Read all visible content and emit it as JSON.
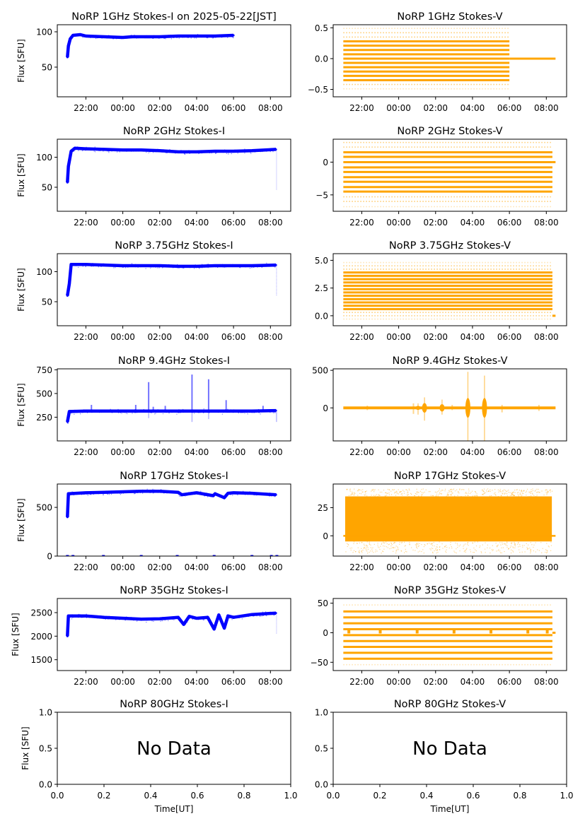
{
  "figure": {
    "xlabel_bottom": "Time[UT]",
    "ylabel": "Flux [SFU]",
    "no_data_label": "No Data",
    "colors": {
      "stokes_i": "#0000ff",
      "stokes_v": "#ffa500",
      "axes": "#000000"
    }
  },
  "chart_data": [
    {
      "id": "i1",
      "type": "scatter",
      "title": "NoRP 1GHz Stokes-I on 2025-05-22[JST]",
      "ylabel": "Flux [SFU]",
      "ylim": [
        8,
        110
      ],
      "yticks": [
        50,
        100
      ],
      "ytick_labels": [
        "50",
        "100"
      ],
      "xticks": [
        "22:00",
        "00:00",
        "02:00",
        "04:00",
        "06:00",
        "08:00"
      ],
      "xlim_hours": [
        -3.55,
        9.1
      ],
      "color": "#0000ff",
      "series": [
        {
          "name": "Stokes-I",
          "points": [
            [
              -3.0,
              64
            ],
            [
              -2.95,
              80
            ],
            [
              -2.85,
              90
            ],
            [
              -2.7,
              95
            ],
            [
              -2.3,
              96
            ],
            [
              -2,
              94
            ],
            [
              -1,
              93
            ],
            [
              0,
              92
            ],
            [
              0.5,
              93
            ],
            [
              1,
              93
            ],
            [
              2,
              93
            ],
            [
              3,
              94
            ],
            [
              4,
              94
            ],
            [
              5,
              94
            ],
            [
              6,
              95
            ]
          ]
        }
      ],
      "data_end_hours": 6.0
    },
    {
      "id": "v1",
      "type": "scatter",
      "title": "NoRP 1GHz Stokes-V",
      "ylim": [
        -0.62,
        0.55
      ],
      "yticks": [
        -0.5,
        0.0,
        0.5
      ],
      "ytick_labels": [
        "−0.5",
        "0.0",
        "0.5"
      ],
      "xticks": [
        "22:00",
        "00:00",
        "02:00",
        "04:00",
        "06:00",
        "08:00"
      ],
      "xlim_hours": [
        -3.55,
        9.1
      ],
      "color": "#ffa500",
      "levels": [
        -0.49,
        -0.42,
        -0.35,
        -0.28,
        -0.21,
        -0.14,
        -0.07,
        0.0,
        0.07,
        0.14,
        0.21,
        0.28,
        0.35,
        0.42,
        0.49
      ],
      "strong_levels": [
        -0.35,
        -0.28,
        -0.21,
        -0.14,
        -0.07,
        0.0,
        0.07,
        0.14,
        0.21,
        0.28
      ],
      "data_range_hours": [
        -3.0,
        6.0
      ],
      "zero_line_end_hours": 8.5
    },
    {
      "id": "i2",
      "type": "scatter",
      "title": "NoRP 2GHz Stokes-I",
      "ylabel": "Flux [SFU]",
      "ylim": [
        10,
        130
      ],
      "yticks": [
        50,
        100
      ],
      "ytick_labels": [
        "50",
        "100"
      ],
      "xticks": [
        "22:00",
        "00:00",
        "02:00",
        "04:00",
        "06:00",
        "08:00"
      ],
      "xlim_hours": [
        -3.55,
        9.1
      ],
      "color": "#0000ff",
      "series": [
        {
          "name": "Stokes-I",
          "points": [
            [
              -3.0,
              58
            ],
            [
              -2.95,
              85
            ],
            [
              -2.8,
              110
            ],
            [
              -2.6,
              115
            ],
            [
              -2,
              114
            ],
            [
              -1,
              113
            ],
            [
              0,
              112
            ],
            [
              1,
              112
            ],
            [
              2,
              111
            ],
            [
              3,
              109
            ],
            [
              4,
              109
            ],
            [
              5,
              110
            ],
            [
              6,
              110
            ],
            [
              7,
              111
            ],
            [
              8.3,
              113
            ]
          ]
        }
      ],
      "outliers": [
        [
          8.33,
          45
        ]
      ]
    },
    {
      "id": "v2",
      "type": "scatter",
      "title": "NoRP 2GHz Stokes-V",
      "ylim": [
        -7.5,
        3.5
      ],
      "yticks": [
        -5,
        0
      ],
      "ytick_labels": [
        "−5",
        "0"
      ],
      "xticks": [
        "22:00",
        "00:00",
        "02:00",
        "04:00",
        "06:00",
        "08:00"
      ],
      "xlim_hours": [
        -3.55,
        9.1
      ],
      "color": "#ffa500",
      "levels": [
        -6.8,
        -6.0,
        -5.3,
        -4.5,
        -3.8,
        -3.0,
        -2.3,
        -1.5,
        -0.8,
        0.0,
        0.8,
        1.5,
        2.3,
        3.0
      ],
      "strong_levels": [
        -4.5,
        -3.8,
        -3.0,
        -2.3,
        -1.5,
        -0.8,
        0.0,
        0.8,
        1.5
      ],
      "data_range_hours": [
        -3.0,
        8.33
      ],
      "zero_line_end_hours": 8.5
    },
    {
      "id": "i3",
      "type": "scatter",
      "title": "NoRP 3.75GHz Stokes-I",
      "ylabel": "Flux [SFU]",
      "ylim": [
        10,
        130
      ],
      "yticks": [
        50,
        100
      ],
      "ytick_labels": [
        "50",
        "100"
      ],
      "xticks": [
        "22:00",
        "00:00",
        "02:00",
        "04:00",
        "06:00",
        "08:00"
      ],
      "xlim_hours": [
        -3.55,
        9.1
      ],
      "color": "#0000ff",
      "series": [
        {
          "name": "Stokes-I",
          "points": [
            [
              -3.0,
              60
            ],
            [
              -2.9,
              80
            ],
            [
              -2.8,
              112
            ],
            [
              -2,
              112
            ],
            [
              -1,
              111
            ],
            [
              0,
              110
            ],
            [
              1,
              110
            ],
            [
              2,
              110
            ],
            [
              3,
              109
            ],
            [
              4,
              109
            ],
            [
              5,
              110
            ],
            [
              6,
              110
            ],
            [
              7,
              110
            ],
            [
              8.3,
              111
            ]
          ]
        }
      ],
      "outliers": [
        [
          8.33,
          60
        ]
      ]
    },
    {
      "id": "v3",
      "type": "scatter",
      "title": "NoRP 3.75GHz Stokes-V",
      "ylim": [
        -0.9,
        5.6
      ],
      "yticks": [
        0.0,
        2.5,
        5.0
      ],
      "ytick_labels": [
        "0.0",
        "2.5",
        "5.0"
      ],
      "xticks": [
        "22:00",
        "00:00",
        "02:00",
        "04:00",
        "06:00",
        "08:00"
      ],
      "xlim_hours": [
        -3.55,
        9.1
      ],
      "color": "#ffa500",
      "levels": [
        -0.3,
        0.0,
        0.3,
        0.6,
        0.9,
        1.2,
        1.5,
        1.8,
        2.1,
        2.4,
        2.7,
        3.0,
        3.3,
        3.6,
        3.9,
        4.2,
        4.5,
        4.8
      ],
      "strong_levels": [
        0.6,
        0.9,
        1.2,
        1.5,
        1.8,
        2.1,
        2.4,
        2.7,
        3.0,
        3.3,
        3.6,
        3.9
      ],
      "data_range_hours": [
        -3.0,
        8.33
      ],
      "zero_line_end_hours": 8.5
    },
    {
      "id": "i4",
      "type": "scatter",
      "title": "NoRP 9.4GHz Stokes-I",
      "ylabel": "Flux [SFU]",
      "ylim": [
        0,
        760
      ],
      "yticks": [
        250,
        500,
        750
      ],
      "ytick_labels": [
        "250",
        "500",
        "750"
      ],
      "xticks": [
        "22:00",
        "00:00",
        "02:00",
        "04:00",
        "06:00",
        "08:00"
      ],
      "xlim_hours": [
        -3.55,
        9.1
      ],
      "color": "#0000ff",
      "series": [
        {
          "name": "Stokes-I",
          "points": [
            [
              -3.0,
              200
            ],
            [
              -2.9,
              310
            ],
            [
              -2,
              315
            ],
            [
              -1,
              315
            ],
            [
              0,
              315
            ],
            [
              1,
              315
            ],
            [
              2,
              315
            ],
            [
              3,
              315
            ],
            [
              4,
              315
            ],
            [
              5,
              315
            ],
            [
              6,
              315
            ],
            [
              7,
              315
            ],
            [
              8.3,
              320
            ]
          ]
        }
      ],
      "spikes": [
        [
          -1.7,
          380
        ],
        [
          0.7,
          380
        ],
        [
          1.4,
          620
        ],
        [
          1.65,
          360
        ],
        [
          2.3,
          370
        ],
        [
          3.75,
          700
        ],
        [
          4.65,
          650
        ],
        [
          5.6,
          430
        ],
        [
          7.6,
          370
        ]
      ],
      "dips": [
        [
          1.4,
          240
        ],
        [
          3.75,
          200
        ],
        [
          4.65,
          230
        ],
        [
          8.33,
          200
        ]
      ]
    },
    {
      "id": "v4",
      "type": "scatter",
      "title": "NoRP 9.4GHz Stokes-V",
      "ylim": [
        -440,
        520
      ],
      "yticks": [
        0,
        500
      ],
      "ytick_labels": [
        "0",
        "500"
      ],
      "xticks": [
        "22:00",
        "00:00",
        "02:00",
        "04:00",
        "06:00",
        "08:00"
      ],
      "xlim_hours": [
        -3.55,
        9.1
      ],
      "color": "#ffa500",
      "data_range_hours": [
        -3.0,
        8.5
      ],
      "bursts": [
        [
          1.05,
          60,
          -90
        ],
        [
          1.4,
          140,
          -170
        ],
        [
          2.35,
          110,
          -90
        ],
        [
          3.75,
          480,
          -440
        ],
        [
          4.65,
          430,
          -440
        ]
      ],
      "small_bursts": [
        [
          -1.7,
          30,
          -30
        ],
        [
          0.8,
          60,
          -80
        ],
        [
          2.9,
          40,
          -30
        ],
        [
          5.6,
          40,
          -60
        ],
        [
          7.6,
          40,
          -40
        ]
      ]
    },
    {
      "id": "i5",
      "type": "scatter",
      "title": "NoRP 17GHz Stokes-I",
      "ylabel": "Flux [SFU]",
      "ylim": [
        0,
        740
      ],
      "yticks": [
        0,
        500
      ],
      "ytick_labels": [
        "0",
        "500"
      ],
      "xticks": [
        "22:00",
        "00:00",
        "02:00",
        "04:00",
        "06:00",
        "08:00"
      ],
      "xlim_hours": [
        -3.55,
        9.1
      ],
      "color": "#0000ff",
      "series": [
        {
          "name": "Stokes-I",
          "points": [
            [
              -3.0,
              400
            ],
            [
              -2.95,
              640
            ],
            [
              -2,
              650
            ],
            [
              -1,
              655
            ],
            [
              0,
              660
            ],
            [
              1,
              665
            ],
            [
              2,
              665
            ],
            [
              3,
              655
            ],
            [
              3.2,
              630
            ],
            [
              4,
              650
            ],
            [
              4.9,
              620
            ],
            [
              5,
              640
            ],
            [
              5.5,
              600
            ],
            [
              5.7,
              645
            ],
            [
              6,
              650
            ],
            [
              7,
              645
            ],
            [
              8.3,
              630
            ]
          ]
        }
      ],
      "zero_marks_hours": [
        -3.0,
        -2.7,
        -1.05,
        1.0,
        2.95,
        4.95,
        7.0,
        8.05,
        8.35
      ]
    },
    {
      "id": "v5",
      "type": "scatter",
      "title": "NoRP 17GHz Stokes-V",
      "ylim": [
        -18,
        46
      ],
      "yticks": [
        0,
        25
      ],
      "ytick_labels": [
        "0",
        "25"
      ],
      "xticks": [
        "22:00",
        "00:00",
        "02:00",
        "04:00",
        "06:00",
        "08:00"
      ],
      "xlim_hours": [
        -3.55,
        9.1
      ],
      "color": "#ffa500",
      "band": [
        -5,
        35
      ],
      "scatter_range": [
        -15,
        42
      ],
      "data_range_hours": [
        -2.9,
        8.3
      ],
      "zero_line_end_hours": 8.5
    },
    {
      "id": "i6",
      "type": "scatter",
      "title": "NoRP 35GHz Stokes-I",
      "ylabel": "Flux [SFU]",
      "ylim": [
        1270,
        2800
      ],
      "yticks": [
        1500,
        2000,
        2500
      ],
      "ytick_labels": [
        "1500",
        "2000",
        "2500"
      ],
      "xticks": [
        "22:00",
        "00:00",
        "02:00",
        "04:00",
        "06:00",
        "08:00"
      ],
      "xlim_hours": [
        -3.55,
        9.1
      ],
      "color": "#0000ff",
      "series": [
        {
          "name": "Stokes-I",
          "points": [
            [
              -3.0,
              2000
            ],
            [
              -2.95,
              2430
            ],
            [
              -2,
              2430
            ],
            [
              -1,
              2400
            ],
            [
              0,
              2380
            ],
            [
              1,
              2360
            ],
            [
              2,
              2370
            ],
            [
              3,
              2400
            ],
            [
              3.3,
              2250
            ],
            [
              3.6,
              2420
            ],
            [
              4,
              2380
            ],
            [
              4.6,
              2400
            ],
            [
              4.95,
              2150
            ],
            [
              5.2,
              2450
            ],
            [
              5.5,
              2170
            ],
            [
              5.7,
              2430
            ],
            [
              6,
              2400
            ],
            [
              7,
              2460
            ],
            [
              8.3,
              2490
            ]
          ]
        }
      ],
      "outliers": [
        [
          8.33,
          2040
        ]
      ]
    },
    {
      "id": "v6",
      "type": "scatter",
      "title": "NoRP 35GHz Stokes-V",
      "ylim": [
        -64,
        58
      ],
      "yticks": [
        -50,
        0,
        50
      ],
      "ytick_labels": [
        "−50",
        "0",
        "50"
      ],
      "xticks": [
        "22:00",
        "00:00",
        "02:00",
        "04:00",
        "06:00",
        "08:00"
      ],
      "xlim_hours": [
        -3.55,
        9.1
      ],
      "color": "#ffa500",
      "levels": [
        -54,
        -44,
        -34,
        -24,
        -14,
        -4,
        6,
        16,
        26,
        36,
        47
      ],
      "strong_levels": [
        -44,
        -34,
        -24,
        -14,
        -4,
        6,
        16,
        26,
        36
      ],
      "zero_marks_hours": [
        -2.7,
        -1.0,
        1.0,
        3.0,
        5.0,
        7.0,
        8.05
      ],
      "data_range_hours": [
        -3.0,
        8.33
      ],
      "zero_line_end_hours": 8.5
    },
    {
      "id": "i7",
      "type": "empty",
      "title": "NoRP 80GHz Stokes-I",
      "ylabel": "Flux [SFU]",
      "xlabel": "Time[UT]",
      "ylim": [
        0,
        1
      ],
      "xlim": [
        0,
        1
      ],
      "yticks": [
        0.0,
        0.5,
        1.0
      ],
      "ytick_labels": [
        "0.0",
        "0.5",
        "1.0"
      ],
      "xtick_values": [
        0.0,
        0.2,
        0.4,
        0.6,
        0.8,
        1.0
      ],
      "xticks": [
        "0.0",
        "0.2",
        "0.4",
        "0.6",
        "0.8",
        "1.0"
      ],
      "annotation": "No Data"
    },
    {
      "id": "v7",
      "type": "empty",
      "title": "NoRP 80GHz Stokes-V",
      "xlabel": "Time[UT]",
      "ylim": [
        0,
        1
      ],
      "xlim": [
        0,
        1
      ],
      "yticks": [
        0.0,
        0.5,
        1.0
      ],
      "ytick_labels": [
        "0.0",
        "0.5",
        "1.0"
      ],
      "xtick_values": [
        0.0,
        0.2,
        0.4,
        0.6,
        0.8,
        1.0
      ],
      "xticks": [
        "0.0",
        "0.2",
        "0.4",
        "0.6",
        "0.8",
        "1.0"
      ],
      "annotation": "No Data"
    }
  ]
}
